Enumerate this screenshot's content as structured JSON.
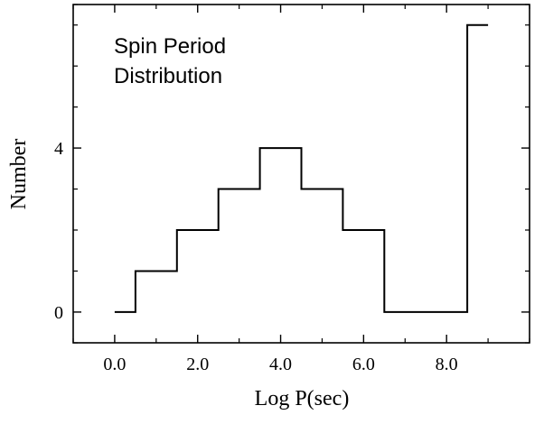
{
  "chart_data": {
    "type": "step",
    "title_lines": [
      "Spin Period",
      "Distribution"
    ],
    "xlabel": "Log P(sec)",
    "ylabel": "Number",
    "xlim": [
      -1.0,
      10.0
    ],
    "ylim": [
      -0.75,
      7.5
    ],
    "x_ticks": [
      0,
      2,
      4,
      6,
      8
    ],
    "x_tick_labels": [
      "0.0",
      "2.0",
      "4.0",
      "6.0",
      "8.0"
    ],
    "x_minor_ticks": [
      -1,
      1,
      3,
      5,
      7,
      9,
      10
    ],
    "y_ticks": [
      0,
      4
    ],
    "y_tick_labels": [
      "0",
      "4"
    ],
    "y_minor_ticks": [
      -0.75,
      1,
      2,
      3,
      5,
      6,
      7,
      7.5
    ],
    "steps": [
      {
        "x0": 0.0,
        "x1": 0.5,
        "value": 0
      },
      {
        "x0": 0.5,
        "x1": 1.5,
        "value": 1
      },
      {
        "x0": 1.5,
        "x1": 2.5,
        "value": 2
      },
      {
        "x0": 2.5,
        "x1": 3.5,
        "value": 3
      },
      {
        "x0": 3.5,
        "x1": 4.5,
        "value": 4
      },
      {
        "x0": 4.5,
        "x1": 5.5,
        "value": 3
      },
      {
        "x0": 5.5,
        "x1": 6.5,
        "value": 2
      },
      {
        "x0": 6.5,
        "x1": 8.5,
        "value": 0
      },
      {
        "x0": 8.5,
        "x1": 9.0,
        "value": 7
      }
    ],
    "grid": false
  }
}
